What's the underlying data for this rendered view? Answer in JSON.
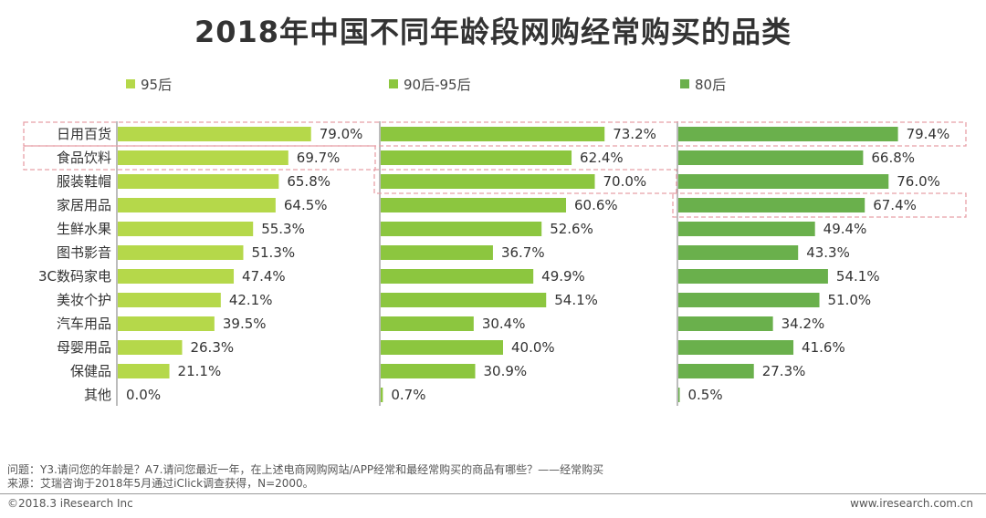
{
  "chart_data": {
    "type": "bar",
    "orientation": "horizontal",
    "title": "2018年中国不同年龄段网购经常购买的品类",
    "categories": [
      "日用百货",
      "食品饮料",
      "服装鞋帽",
      "家居用品",
      "生鲜水果",
      "图书影音",
      "3C数码家电",
      "美妆个护",
      "汽车用品",
      "母婴用品",
      "保健品",
      "其他"
    ],
    "series": [
      {
        "name": "95后",
        "color": "#b5d84a",
        "values": [
          79.0,
          69.7,
          65.8,
          64.5,
          55.3,
          51.3,
          47.4,
          42.1,
          39.5,
          26.3,
          21.1,
          0.0
        ],
        "labels": [
          "79.0%",
          "69.7%",
          "65.8%",
          "64.5%",
          "55.3%",
          "51.3%",
          "47.4%",
          "42.1%",
          "39.5%",
          "26.3%",
          "21.1%",
          "0.0%"
        ],
        "highlighted": [
          "日用百货",
          "食品饮料"
        ]
      },
      {
        "name": "90后-95后",
        "color": "#8cc63f",
        "values": [
          73.2,
          62.4,
          70.0,
          60.6,
          52.6,
          36.7,
          49.9,
          54.1,
          30.4,
          40.0,
          30.9,
          0.7
        ],
        "labels": [
          "73.2%",
          "62.4%",
          "70.0%",
          "60.6%",
          "52.6%",
          "36.7%",
          "49.9%",
          "54.1%",
          "30.4%",
          "40.0%",
          "30.9%",
          "0.7%"
        ],
        "highlighted": [
          "日用百货",
          "服装鞋帽"
        ]
      },
      {
        "name": "80后",
        "color": "#6ab04c",
        "values": [
          79.4,
          66.8,
          76.0,
          67.4,
          49.4,
          43.3,
          54.1,
          51.0,
          34.2,
          41.6,
          27.3,
          0.5
        ],
        "labels": [
          "79.4%",
          "66.8%",
          "76.0%",
          "67.4%",
          "49.4%",
          "43.3%",
          "54.1%",
          "51.0%",
          "34.2%",
          "41.6%",
          "27.3%",
          "0.5%"
        ],
        "highlighted": [
          "日用百货",
          "家居用品"
        ]
      }
    ],
    "highlight_color": "#e8a0a8",
    "value_unit": "%",
    "xlim": [
      0,
      100
    ]
  },
  "footnotes": {
    "question": "问题：Y3.请问您的年龄是？A7.请问您最近一年，在上述电商网购网站/APP经常和最经常购买的商品有哪些？——经常购买",
    "source": "来源：艾瑞咨询于2018年5月通过iClick调查获得，N=2000。"
  },
  "copyright": "©2018.3 iResearch Inc",
  "website": "www.iresearch.com.cn"
}
